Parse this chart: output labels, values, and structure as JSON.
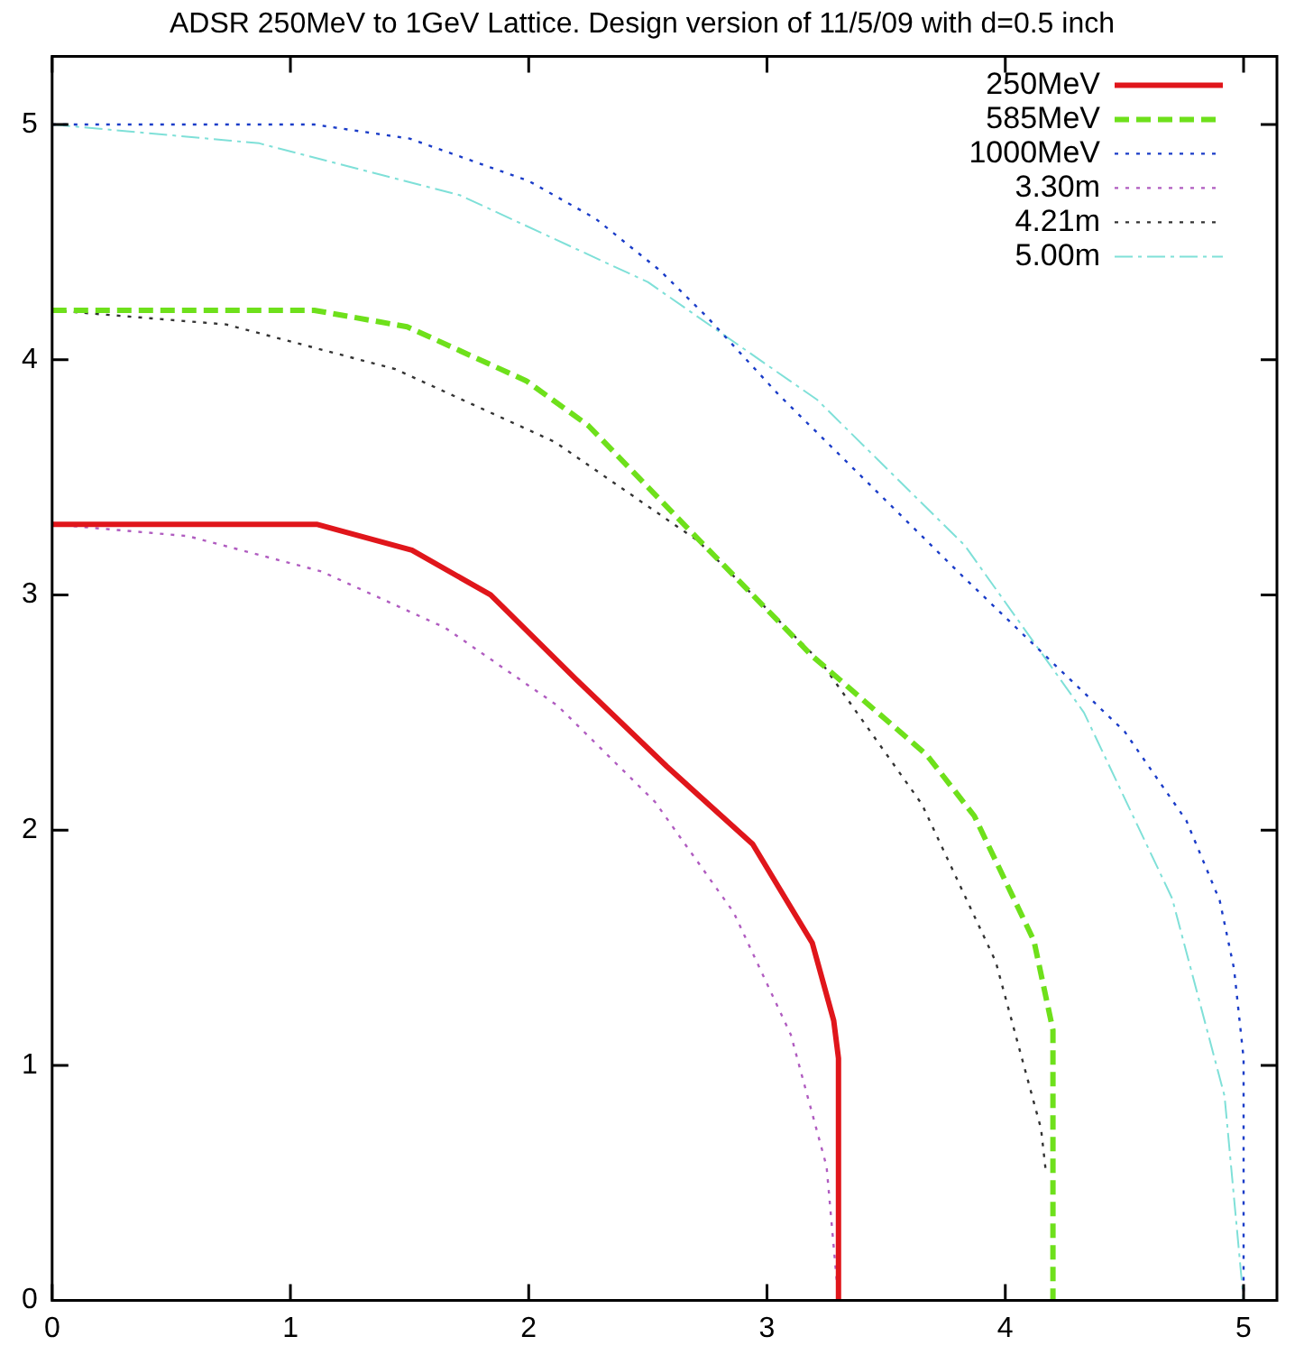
{
  "chart_data": {
    "type": "line",
    "title": "ADSR 250MeV to 1GeV Lattice. Design version of 11/5/09 with d=0.5 inch",
    "xlim": [
      0,
      5.14
    ],
    "ylim": [
      0,
      5.29
    ],
    "xticks": [
      0,
      1,
      2,
      3,
      4,
      5
    ],
    "yticks": [
      0,
      1,
      2,
      3,
      4,
      5
    ],
    "grid": false,
    "legend": "top right",
    "marker": "none",
    "series": [
      {
        "name": "250MeV",
        "color": "#e0161b",
        "line_style": "solid",
        "x": [
          0,
          1.11,
          1.51,
          1.84,
          2.2,
          2.58,
          2.94,
          3.19,
          3.28,
          3.3,
          3.3
        ],
        "values": [
          3.3,
          3.3,
          3.19,
          3.0,
          2.64,
          2.27,
          1.94,
          1.52,
          1.19,
          1.03,
          0
        ]
      },
      {
        "name": "585MeV",
        "color": "#6ee01b",
        "line_style": "dashed",
        "x": [
          0,
          1.1,
          1.49,
          1.99,
          2.25,
          2.68,
          3.19,
          3.67,
          3.87,
          4.12,
          4.2,
          4.2
        ],
        "values": [
          4.21,
          4.21,
          4.14,
          3.91,
          3.72,
          3.27,
          2.74,
          2.32,
          2.06,
          1.53,
          1.15,
          0
        ]
      },
      {
        "name": "1000MeV",
        "color": "#1a3cc8",
        "line_style": "dotted",
        "x": [
          0,
          1.1,
          1.5,
          2.0,
          2.28,
          2.55,
          2.75,
          3.05,
          3.4,
          3.8,
          4.19,
          4.5,
          4.76,
          4.9,
          4.96,
          5.0,
          5.0
        ],
        "values": [
          5.0,
          5.0,
          4.94,
          4.76,
          4.6,
          4.38,
          4.18,
          3.85,
          3.5,
          3.1,
          2.72,
          2.42,
          2.04,
          1.7,
          1.41,
          1.03,
          0
        ]
      },
      {
        "name": "3.30m",
        "color": "#b05cc0",
        "line_style": "dotted",
        "x": [
          0,
          0.57,
          1.13,
          1.65,
          2.12,
          2.53,
          2.86,
          3.1,
          3.25,
          3.3
        ],
        "values": [
          3.3,
          3.25,
          3.1,
          2.86,
          2.53,
          2.12,
          1.65,
          1.13,
          0.57,
          0
        ]
      },
      {
        "name": "4.21m",
        "color": "#333333",
        "line_style": "dotted",
        "x": [
          0,
          0.73,
          1.44,
          2.11,
          2.71,
          3.23,
          3.65,
          3.96,
          4.15,
          4.17
        ],
        "values": [
          4.21,
          4.15,
          3.96,
          3.65,
          3.23,
          2.71,
          2.11,
          1.44,
          0.73,
          0.55
        ]
      },
      {
        "name": "5.00m",
        "color": "#7fe0d8",
        "line_style": "dashed",
        "x": [
          0,
          0.87,
          1.71,
          2.5,
          3.21,
          3.83,
          4.33,
          4.7,
          4.92,
          5.0
        ],
        "values": [
          5.0,
          4.92,
          4.7,
          4.33,
          3.83,
          3.21,
          2.5,
          1.71,
          0.87,
          0
        ]
      }
    ]
  }
}
